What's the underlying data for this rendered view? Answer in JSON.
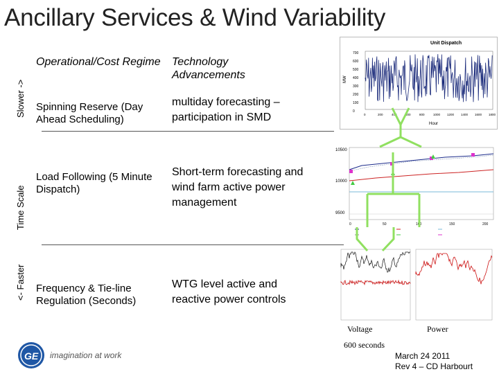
{
  "title": "Ancillary Services & Wind Variability",
  "axis_labels": {
    "slower": "Slower ->",
    "time_scale": "Time Scale",
    "faster": "<- Faster"
  },
  "columns": {
    "regime": "Operational/Cost Regime",
    "tech": "Technology Advancements"
  },
  "rows": [
    {
      "regime": "Spinning Reserve (Day Ahead Scheduling)",
      "tech": "multiday forecasting – participation in SMD"
    },
    {
      "regime": "Load Following (5 Minute Dispatch)",
      "tech": "Short-term forecasting and wind farm active power management"
    },
    {
      "regime": "Frequency & Tie-line Regulation (Seconds)",
      "tech": "WTG level active and reactive power controls"
    }
  ],
  "charts": {
    "unit_dispatch": {
      "title": "Unit Dispatch",
      "ylabel": "MW",
      "xlabel": "Hour",
      "yticks": [
        "700",
        "600",
        "500",
        "400",
        "300",
        "200",
        "100",
        "0"
      ],
      "xticks": [
        "0",
        "200",
        "400",
        "600",
        "800",
        "1000",
        "1200",
        "1400",
        "1600",
        "1800"
      ]
    },
    "forecast": {
      "yticks": [
        "10500",
        "10000",
        "9500"
      ],
      "xticks": [
        "0",
        "50",
        "100",
        "150",
        "200"
      ]
    },
    "voltage_label": "Voltage",
    "power_label": "Power",
    "duration_label": "600 seconds"
  },
  "footer": {
    "logo_text": "imagination at work",
    "date": "March 24 2011",
    "rev": "Rev 4 – CD Harbourt"
  },
  "colors": {
    "arrow": "#90e060",
    "dispatch": "#1a2a7a",
    "forecast_red": "#cc2222",
    "forecast_blue": "#1a2a8a",
    "power_red": "#cc1111",
    "ge_blue": "#1f57a5"
  }
}
